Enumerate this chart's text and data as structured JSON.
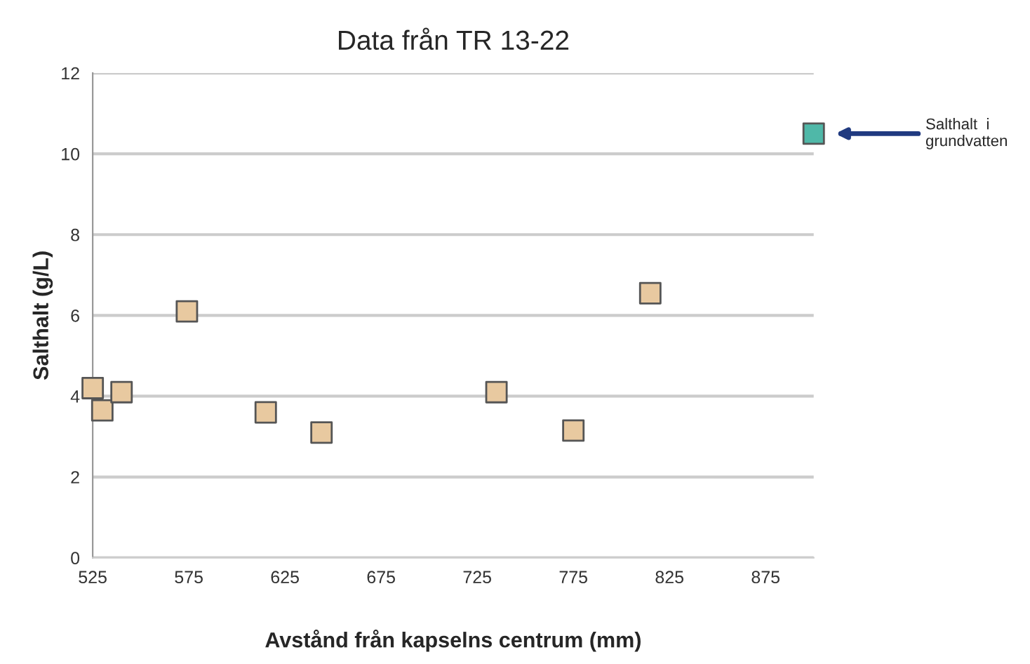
{
  "chart_data": {
    "type": "scatter",
    "title": "Data från TR 13-22",
    "xlabel": "Avstånd från kapselns centrum (mm)",
    "ylabel": "Salthalt (g/L)",
    "series": [
      {
        "color": "#e8c9a0",
        "x": [
          525,
          530,
          540,
          574,
          615,
          644,
          735,
          775,
          815
        ],
        "values": [
          4.2,
          3.65,
          4.1,
          6.1,
          3.6,
          3.1,
          4.1,
          3.15,
          6.55
        ]
      },
      {
        "color": "#4fb8a8",
        "x": [
          900
        ],
        "values": [
          10.5
        ]
      }
    ],
    "annotations": [
      "Salthalt  i\ngrundvatten"
    ],
    "xlim": [
      525,
      900
    ],
    "xticks": [
      525,
      575,
      625,
      675,
      725,
      775,
      825,
      875
    ],
    "ylim": [
      0,
      12
    ],
    "yticks": [
      0,
      2,
      4,
      6,
      8,
      10,
      12
    ],
    "grid": "y",
    "marker": "square"
  }
}
